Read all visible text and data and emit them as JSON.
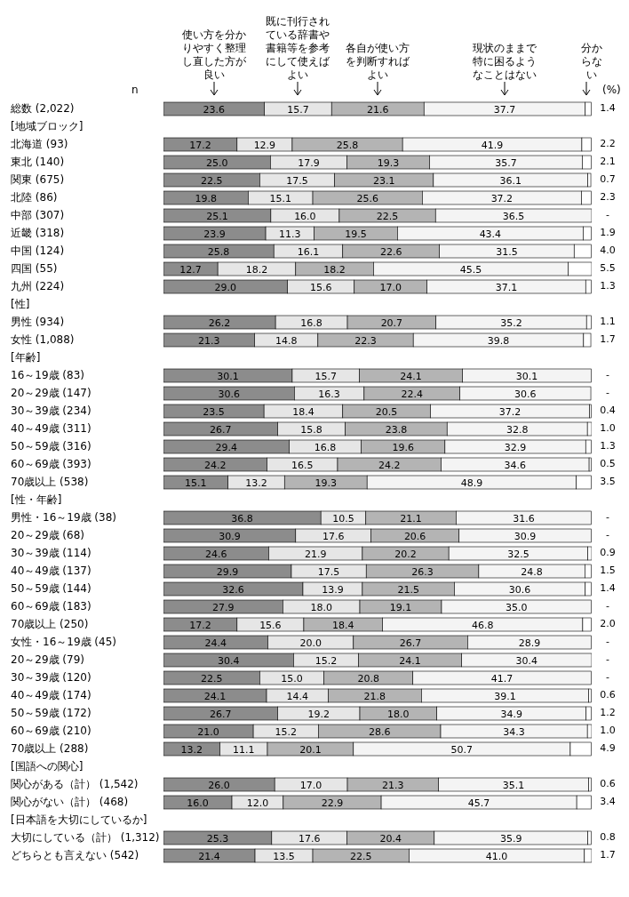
{
  "chart_data": {
    "type": "bar",
    "orientation": "horizontal",
    "stacked": true,
    "legend": "top",
    "annotations": [
      "n",
      "(%)"
    ],
    "categories": [
      "総数 (2,022)",
      "[地域ブロック]",
      "北海道 (93)",
      "東北 (140)",
      "関東 (675)",
      "北陸 (86)",
      "中部 (307)",
      "近畿 (318)",
      "中国 (124)",
      "四国 (55)",
      "九州 (224)",
      "[性]",
      "男性 (934)",
      "女性 (1,088)",
      "[年齢]",
      "16～19歳 (83)",
      "20～29歳 (147)",
      "30～39歳 (234)",
      "40～49歳 (311)",
      "50～59歳 (316)",
      "60～69歳 (393)",
      "70歳以上 (538)",
      "[性・年齢]",
      "男性・16～19歳 (38)",
      "20～29歳 (68)",
      "30～39歳 (114)",
      "40～49歳 (137)",
      "50～59歳 (144)",
      "60～69歳 (183)",
      "70歳以上 (250)",
      "女性・16～19歳 (45)",
      "20～29歳 (79)",
      "30～39歳 (120)",
      "40～49歳 (174)",
      "50～59歳 (172)",
      "60～69歳 (210)",
      "70歳以上 (288)",
      "[国語への関心]",
      "関心がある（計） (1,542)",
      "関心がない（計） (468)",
      "[日本語を大切にしているか]",
      "大切にしている（計） (1,312)",
      "どちらとも言えない (542)"
    ],
    "series": [
      {
        "name": "使い方を分かりやすく整理し直した方が良い",
        "color": "#8c8c8c",
        "values": [
          23.6,
          null,
          17.2,
          25.0,
          22.5,
          19.8,
          25.1,
          23.9,
          25.8,
          12.7,
          29.0,
          null,
          26.2,
          21.3,
          null,
          30.1,
          30.6,
          23.5,
          26.7,
          29.4,
          24.2,
          15.1,
          null,
          36.8,
          30.9,
          24.6,
          29.9,
          32.6,
          27.9,
          17.2,
          24.4,
          30.4,
          22.5,
          24.1,
          26.7,
          21.0,
          13.2,
          null,
          26.0,
          16.0,
          null,
          25.3,
          21.4
        ],
        "value_labels": [
          "23.6",
          null,
          "17.2",
          "25.0",
          "22.5",
          "19.8",
          "25.1",
          "23.9",
          "25.8",
          "12.7",
          "29.0",
          null,
          "26.2",
          "21.3",
          null,
          "30.1",
          "30.6",
          "23.5",
          "26.7",
          "29.4",
          "24.2",
          "15.1",
          null,
          "36.8",
          "30.9",
          "24.6",
          "29.9",
          "32.6",
          "27.9",
          "17.2",
          "24.4",
          "30.4",
          "22.5",
          "24.1",
          "26.7",
          "21.0",
          "13.2",
          null,
          "26.0",
          "16.0",
          null,
          "25.3",
          "21.4"
        ]
      },
      {
        "name": "既に刊行されている辞書や書籍等を参考にして使えばよい",
        "color": "#e6e6e6",
        "values": [
          15.7,
          null,
          12.9,
          17.9,
          17.5,
          15.1,
          16.0,
          11.3,
          16.1,
          18.2,
          15.6,
          null,
          16.8,
          14.8,
          null,
          15.7,
          16.3,
          18.4,
          15.8,
          16.8,
          16.5,
          13.2,
          null,
          10.5,
          17.6,
          21.9,
          17.5,
          13.9,
          18.0,
          15.6,
          20.0,
          15.2,
          15.0,
          14.4,
          19.2,
          15.2,
          11.1,
          null,
          17.0,
          12.0,
          null,
          17.6,
          13.5
        ],
        "value_labels": [
          "15.7",
          null,
          "12.9",
          "17.9",
          "17.5",
          "15.1",
          "16.0",
          "11.3",
          "16.1",
          "18.2",
          "15.6",
          null,
          "16.8",
          "14.8",
          null,
          "15.7",
          "16.3",
          "18.4",
          "15.8",
          "16.8",
          "16.5",
          "13.2",
          null,
          "10.5",
          "17.6",
          "21.9",
          "17.5",
          "13.9",
          "18.0",
          "15.6",
          "20.0",
          "15.2",
          "15.0",
          "14.4",
          "19.2",
          "15.2",
          "11.1",
          null,
          "17.0",
          "12.0",
          null,
          "17.6",
          "13.5"
        ]
      },
      {
        "name": "各自が使い方を判断すればよい",
        "color": "#b4b4b4",
        "values": [
          21.6,
          null,
          25.8,
          19.3,
          23.1,
          25.6,
          22.5,
          19.5,
          22.6,
          18.2,
          17.0,
          null,
          20.7,
          22.3,
          null,
          24.1,
          22.4,
          20.5,
          23.8,
          19.6,
          24.2,
          19.3,
          null,
          21.1,
          20.6,
          20.2,
          26.3,
          21.5,
          19.1,
          18.4,
          26.7,
          24.1,
          20.8,
          21.8,
          18.0,
          28.6,
          20.1,
          null,
          21.3,
          22.9,
          null,
          20.4,
          22.5
        ],
        "value_labels": [
          "21.6",
          null,
          "25.8",
          "19.3",
          "23.1",
          "25.6",
          "22.5",
          "19.5",
          "22.6",
          "18.2",
          "17.0",
          null,
          "20.7",
          "22.3",
          null,
          "24.1",
          "22.4",
          "20.5",
          "23.8",
          "19.6",
          "24.2",
          "19.3",
          null,
          "21.1",
          "20.6",
          "20.2",
          "26.3",
          "21.5",
          "19.1",
          "18.4",
          "26.7",
          "24.1",
          "20.8",
          "21.8",
          "18.0",
          "28.6",
          "20.1",
          null,
          "21.3",
          "22.9",
          null,
          "20.4",
          "22.5"
        ]
      },
      {
        "name": "現状のままで特に困るようなことはない",
        "color": "#f4f4f4",
        "values": [
          37.7,
          null,
          41.9,
          35.7,
          36.1,
          37.2,
          36.5,
          43.4,
          31.5,
          45.5,
          37.1,
          null,
          35.2,
          39.8,
          null,
          30.1,
          30.6,
          37.2,
          32.8,
          32.9,
          34.6,
          48.9,
          null,
          31.6,
          30.9,
          32.5,
          24.8,
          30.6,
          35.0,
          46.8,
          28.9,
          30.4,
          41.7,
          39.1,
          34.9,
          34.3,
          50.7,
          null,
          35.1,
          45.7,
          null,
          35.9,
          41.0
        ],
        "value_labels": [
          "37.7",
          null,
          "41.9",
          "35.7",
          "36.1",
          "37.2",
          "36.5",
          "43.4",
          "31.5",
          "45.5",
          "37.1",
          null,
          "35.2",
          "39.8",
          null,
          "30.1",
          "30.6",
          "37.2",
          "32.8",
          "32.9",
          "34.6",
          "48.9",
          null,
          "31.6",
          "30.9",
          "32.5",
          "24.8",
          "30.6",
          "35.0",
          "46.8",
          "28.9",
          "30.4",
          "41.7",
          "39.1",
          "34.9",
          "34.3",
          "50.7",
          null,
          "35.1",
          "45.7",
          null,
          "35.9",
          "41.0"
        ]
      },
      {
        "name": "分からない",
        "color": "#ffffff",
        "values": [
          1.4,
          null,
          2.2,
          2.1,
          0.7,
          2.3,
          0,
          1.9,
          4.0,
          5.5,
          1.3,
          null,
          1.1,
          1.7,
          null,
          0,
          0,
          0.4,
          1.0,
          1.3,
          0.5,
          3.5,
          null,
          0,
          0,
          0.9,
          1.5,
          1.4,
          0,
          2.0,
          0,
          0,
          0,
          0.6,
          1.2,
          1.0,
          4.9,
          null,
          0.6,
          3.4,
          null,
          0.8,
          1.7
        ],
        "value_labels": [
          "1.4",
          null,
          "2.2",
          "2.1",
          "0.7",
          "2.3",
          "-",
          "1.9",
          "4.0",
          "5.5",
          "1.3",
          null,
          "1.1",
          "1.7",
          null,
          "-",
          "-",
          "0.4",
          "1.0",
          "1.3",
          "0.5",
          "3.5",
          null,
          "-",
          "-",
          "0.9",
          "1.5",
          "1.4",
          "-",
          "2.0",
          "-",
          "-",
          "-",
          "0.6",
          "1.2",
          "1.0",
          "4.9",
          null,
          "0.6",
          "3.4",
          null,
          "0.8",
          "1.7"
        ]
      }
    ]
  }
}
